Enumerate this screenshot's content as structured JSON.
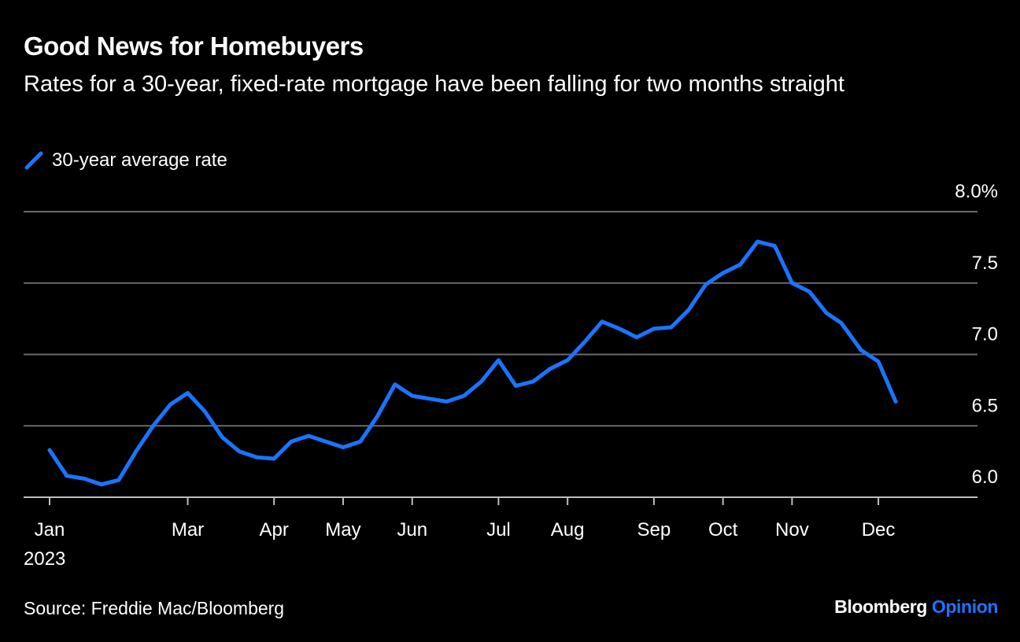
{
  "header": {
    "title": "Good News for Homebuyers",
    "subtitle": "Rates for a 30-year, fixed-rate mortgage have been falling for two months straight"
  },
  "legend": {
    "label": "30-year average rate"
  },
  "footer": {
    "source": "Source: Freddie Mac/Bloomberg",
    "brand_main": "Bloomberg",
    "brand_accent": "Opinion"
  },
  "colors": {
    "background": "#000000",
    "line": "#1a74ff",
    "grid": "#6b6b6b",
    "text": "#ffffff"
  },
  "chart_data": {
    "type": "line",
    "title": "Good News for Homebuyers",
    "subtitle": "Rates for a 30-year, fixed-rate mortgage have been falling for two months straight",
    "xlabel": "",
    "ylabel": "",
    "ylim": [
      6.0,
      8.0
    ],
    "y_ticks": [
      {
        "value": 8.0,
        "label": "8.0%"
      },
      {
        "value": 7.5,
        "label": "7.5"
      },
      {
        "value": 7.0,
        "label": "7.0"
      },
      {
        "value": 6.5,
        "label": "6.5"
      },
      {
        "value": 6.0,
        "label": "6.0"
      }
    ],
    "x_ticks": [
      {
        "date": "2023-01-05",
        "label": "Jan",
        "sublabel": "2023"
      },
      {
        "date": "2023-03-02",
        "label": "Mar"
      },
      {
        "date": "2023-04-06",
        "label": "Apr"
      },
      {
        "date": "2023-05-04",
        "label": "May"
      },
      {
        "date": "2023-06-01",
        "label": "Jun"
      },
      {
        "date": "2023-07-06",
        "label": "Jul"
      },
      {
        "date": "2023-08-03",
        "label": "Aug"
      },
      {
        "date": "2023-09-07",
        "label": "Sep"
      },
      {
        "date": "2023-10-05",
        "label": "Oct"
      },
      {
        "date": "2023-11-02",
        "label": "Nov"
      },
      {
        "date": "2023-12-07",
        "label": "Dec"
      }
    ],
    "grid": true,
    "legend_position": "top-left",
    "series": [
      {
        "name": "30-year average rate",
        "color": "#1a74ff",
        "x": [
          "2023-01-05",
          "2023-01-12",
          "2023-01-19",
          "2023-01-26",
          "2023-02-02",
          "2023-02-09",
          "2023-02-16",
          "2023-02-23",
          "2023-03-02",
          "2023-03-09",
          "2023-03-16",
          "2023-03-23",
          "2023-03-30",
          "2023-04-06",
          "2023-04-13",
          "2023-04-20",
          "2023-04-27",
          "2023-05-04",
          "2023-05-11",
          "2023-05-18",
          "2023-05-25",
          "2023-06-01",
          "2023-06-08",
          "2023-06-15",
          "2023-06-22",
          "2023-06-29",
          "2023-07-06",
          "2023-07-13",
          "2023-07-20",
          "2023-07-27",
          "2023-08-03",
          "2023-08-10",
          "2023-08-17",
          "2023-08-24",
          "2023-08-31",
          "2023-09-07",
          "2023-09-14",
          "2023-09-21",
          "2023-09-28",
          "2023-10-05",
          "2023-10-12",
          "2023-10-19",
          "2023-10-26",
          "2023-11-02",
          "2023-11-09",
          "2023-11-16",
          "2023-11-22",
          "2023-11-30",
          "2023-12-07",
          "2023-12-14"
        ],
        "values": [
          6.33,
          6.15,
          6.13,
          6.09,
          6.12,
          6.32,
          6.5,
          6.65,
          6.73,
          6.6,
          6.42,
          6.32,
          6.28,
          6.27,
          6.39,
          6.43,
          6.39,
          6.35,
          6.39,
          6.57,
          6.79,
          6.71,
          6.69,
          6.67,
          6.71,
          6.81,
          6.96,
          6.78,
          6.81,
          6.9,
          6.96,
          7.09,
          7.23,
          7.18,
          7.12,
          7.18,
          7.19,
          7.31,
          7.49,
          7.57,
          7.63,
          7.79,
          7.76,
          7.5,
          7.44,
          7.29,
          7.22,
          7.03,
          6.95,
          6.67
        ]
      }
    ]
  }
}
